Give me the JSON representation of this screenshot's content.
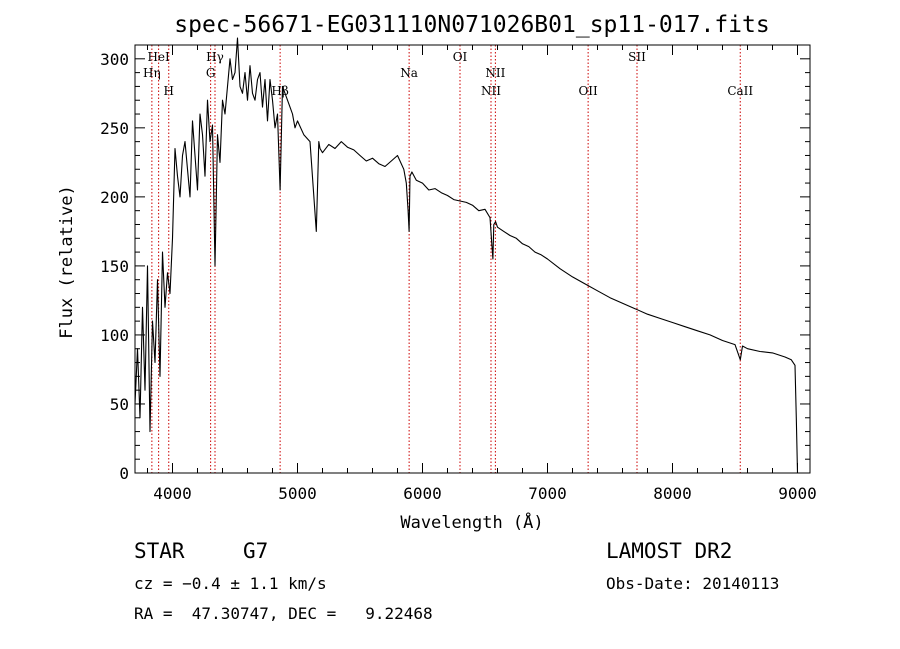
{
  "chart_data": {
    "type": "line",
    "title": "spec-56671-EG031110N071026B01_sp11-017.fits",
    "xlabel": "Wavelength (Å)",
    "ylabel": "Flux (relative)",
    "xlim": [
      3700,
      9100
    ],
    "ylim": [
      0,
      310
    ],
    "x_ticks": [
      4000,
      5000,
      6000,
      7000,
      8000,
      9000
    ],
    "y_ticks": [
      0,
      50,
      100,
      150,
      200,
      250,
      300
    ],
    "grid": false,
    "legend": "none",
    "series": [
      {
        "x": [
          3700,
          3720,
          3740,
          3760,
          3780,
          3800,
          3820,
          3840,
          3860,
          3880,
          3900,
          3920,
          3940,
          3960,
          3980,
          4000,
          4020,
          4040,
          4060,
          4080,
          4100,
          4120,
          4140,
          4160,
          4180,
          4200,
          4220,
          4240,
          4260,
          4280,
          4300,
          4320,
          4340,
          4360,
          4380,
          4400,
          4420,
          4440,
          4460,
          4480,
          4500,
          4520,
          4540,
          4560,
          4580,
          4600,
          4620,
          4640,
          4660,
          4680,
          4700,
          4720,
          4740,
          4760,
          4780,
          4800,
          4820,
          4840,
          4861,
          4880,
          4900,
          4920,
          4940,
          4960,
          4980,
          5000,
          5050,
          5100,
          5150,
          5170,
          5180,
          5200,
          5250,
          5300,
          5350,
          5400,
          5450,
          5500,
          5550,
          5600,
          5650,
          5700,
          5750,
          5800,
          5850,
          5870,
          5885,
          5893,
          5900,
          5915,
          5950,
          6000,
          6050,
          6100,
          6150,
          6200,
          6250,
          6300,
          6350,
          6400,
          6450,
          6500,
          6540,
          6555,
          6563,
          6570,
          6585,
          6600,
          6650,
          6700,
          6750,
          6800,
          6850,
          6900,
          6950,
          7000,
          7100,
          7200,
          7300,
          7400,
          7500,
          7600,
          7700,
          7800,
          7900,
          8000,
          8100,
          8200,
          8300,
          8400,
          8500,
          8542,
          8560,
          8600,
          8700,
          8800,
          8900,
          8950,
          8980,
          8990,
          9000
        ],
        "y": [
          50,
          90,
          40,
          120,
          60,
          150,
          30,
          110,
          80,
          140,
          70,
          160,
          120,
          145,
          130,
          170,
          235,
          215,
          200,
          230,
          240,
          220,
          200,
          255,
          230,
          205,
          260,
          245,
          215,
          270,
          240,
          252,
          150,
          245,
          225,
          270,
          260,
          280,
          300,
          285,
          290,
          315,
          280,
          275,
          290,
          270,
          295,
          275,
          270,
          285,
          290,
          265,
          285,
          255,
          285,
          270,
          250,
          260,
          205,
          280,
          275,
          270,
          265,
          260,
          250,
          255,
          245,
          240,
          175,
          240,
          235,
          232,
          238,
          235,
          240,
          236,
          234,
          230,
          226,
          228,
          224,
          222,
          226,
          230,
          220,
          210,
          190,
          175,
          215,
          218,
          212,
          210,
          205,
          206,
          203,
          201,
          198,
          197,
          196,
          194,
          190,
          191,
          185,
          165,
          155,
          180,
          182,
          178,
          175,
          172,
          170,
          166,
          164,
          160,
          158,
          155,
          148,
          142,
          137,
          132,
          127,
          123,
          119,
          115,
          112,
          109,
          106,
          103,
          100,
          96,
          93,
          82,
          92,
          90,
          88,
          87,
          84,
          82,
          78,
          40,
          0
        ]
      }
    ],
    "line_markers": [
      {
        "label": "HeI",
        "x": 3889,
        "row": 1
      },
      {
        "label": "Hη",
        "x": 3835,
        "row": 2
      },
      {
        "label": "H",
        "x": 3970,
        "row": 3
      },
      {
        "label": "Hγ",
        "x": 4340,
        "row": 1
      },
      {
        "label": "G",
        "x": 4305,
        "row": 2
      },
      {
        "label": "Hβ",
        "x": 4861,
        "row": 3
      },
      {
        "label": "Na",
        "x": 5893,
        "row": 2
      },
      {
        "label": "OI",
        "x": 6300,
        "row": 1
      },
      {
        "label": "NII",
        "x": 6583,
        "row": 2
      },
      {
        "label": "NII",
        "x": 6548,
        "row": 3
      },
      {
        "label": "OII",
        "x": 7325,
        "row": 3
      },
      {
        "label": "SII",
        "x": 7716,
        "row": 1
      },
      {
        "label": "CaII",
        "x": 8542,
        "row": 3
      }
    ]
  },
  "footer": {
    "object_type": "STAR",
    "subclass": "G7",
    "redshift": "cz = −0.4 ± 1.1 km/s",
    "coords": "RA =  47.30747, DEC =   9.22468",
    "survey": "LAMOST DR2",
    "obs_date": "Obs-Date: 20140113"
  },
  "colors": {
    "spectrum": "#000000",
    "marker_line": "#cc0000",
    "axes": "#000000",
    "background": "#ffffff"
  }
}
